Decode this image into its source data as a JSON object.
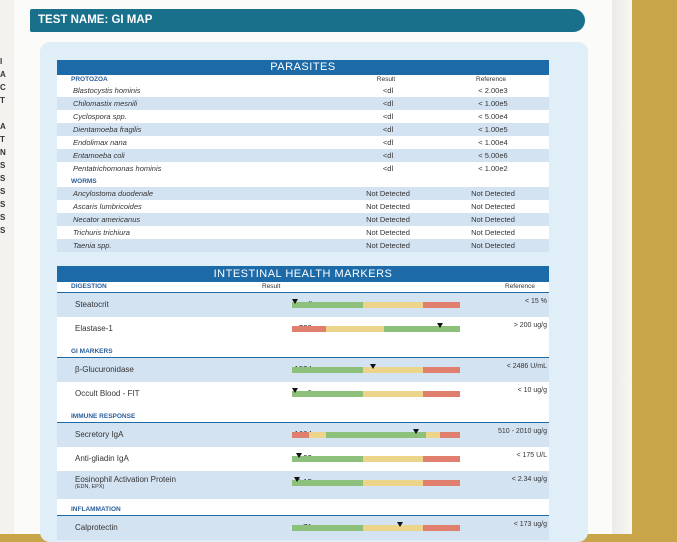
{
  "header": {
    "test_name": "TEST NAME: GI MAP"
  },
  "left_margin_text": "I\nA\nC\nT\n\nA\nT\nN\nS\nS\nS\nS\nS\nS",
  "parasites": {
    "title": "PARASITES",
    "col_result": "Result",
    "col_reference": "Reference",
    "protozoa_label": "PROTOZOA",
    "protozoa": [
      {
        "name": "Blastocystis hominis",
        "result": "<dl",
        "reference": "< 2.00e3"
      },
      {
        "name": "Chilomastix mesnili",
        "result": "<dl",
        "reference": "< 1.00e5"
      },
      {
        "name": "Cyclospora spp.",
        "result": "<dl",
        "reference": "< 5.00e4"
      },
      {
        "name": "Dientamoeba fragilis",
        "result": "<dl",
        "reference": "< 1.00e5"
      },
      {
        "name": "Endolimax nana",
        "result": "<dl",
        "reference": "< 1.00e4"
      },
      {
        "name": "Entamoeba coli",
        "result": "<dl",
        "reference": "< 5.00e6"
      },
      {
        "name": "Pentatrichomonas hominis",
        "result": "<dl",
        "reference": "< 1.00e2"
      }
    ],
    "worms_label": "WORMS",
    "worms": [
      {
        "name": "Ancylostoma duodenale",
        "result": "Not Detected",
        "reference": "Not Detected"
      },
      {
        "name": "Ascaris lumbricoides",
        "result": "Not Detected",
        "reference": "Not Detected"
      },
      {
        "name": "Necator americanus",
        "result": "Not Detected",
        "reference": "Not Detected"
      },
      {
        "name": "Trichuris trichiura",
        "result": "Not Detected",
        "reference": "Not Detected"
      },
      {
        "name": "Taenia spp.",
        "result": "Not Detected",
        "reference": "Not Detected"
      }
    ]
  },
  "ihm": {
    "title": "INTESTINAL HEALTH MARKERS",
    "col_result": "Result",
    "col_reference": "Reference",
    "categories": [
      {
        "label": "DIGESTION",
        "rows": [
          {
            "name": "Steatocrit",
            "sub": "",
            "result": "<dl",
            "reference": "< 15 %",
            "marker": 0.02,
            "type": "low-good"
          },
          {
            "name": "Elastase-1",
            "sub": "",
            "result": "728",
            "reference": "> 200 ug/g",
            "marker": 0.88,
            "type": "high-good"
          }
        ]
      },
      {
        "label": "GI MARKERS",
        "rows": [
          {
            "name": "β-Glucuronidase",
            "sub": "",
            "result": "1834",
            "reference": "< 2486 U/mL",
            "marker": 0.48,
            "type": "low-good"
          },
          {
            "name": "Occult Blood - FIT",
            "sub": "",
            "result": "0",
            "reference": "< 10 ug/g",
            "marker": 0.02,
            "type": "low-good"
          }
        ]
      },
      {
        "label": "IMMUNE RESPONSE",
        "rows": [
          {
            "name": "Secretory IgA",
            "sub": "",
            "result": "1604",
            "reference": "510 - 2010 ug/g",
            "marker": 0.74,
            "type": "mid-good"
          },
          {
            "name": "Anti-gliadin IgA",
            "sub": "",
            "result": "93",
            "reference": "< 175 U/L",
            "marker": 0.04,
            "type": "low-good"
          },
          {
            "name": "Eosinophil Activation Protein",
            "sub": "(EDN, EPX)",
            "result": "0.15",
            "reference": "< 2.34 ug/g",
            "marker": 0.03,
            "type": "low-good"
          }
        ]
      },
      {
        "label": "INFLAMMATION",
        "rows": [
          {
            "name": "Calprotectin",
            "sub": "",
            "result": "71",
            "reference": "< 173 ug/g",
            "marker": 0.64,
            "type": "low-good"
          }
        ]
      }
    ]
  }
}
